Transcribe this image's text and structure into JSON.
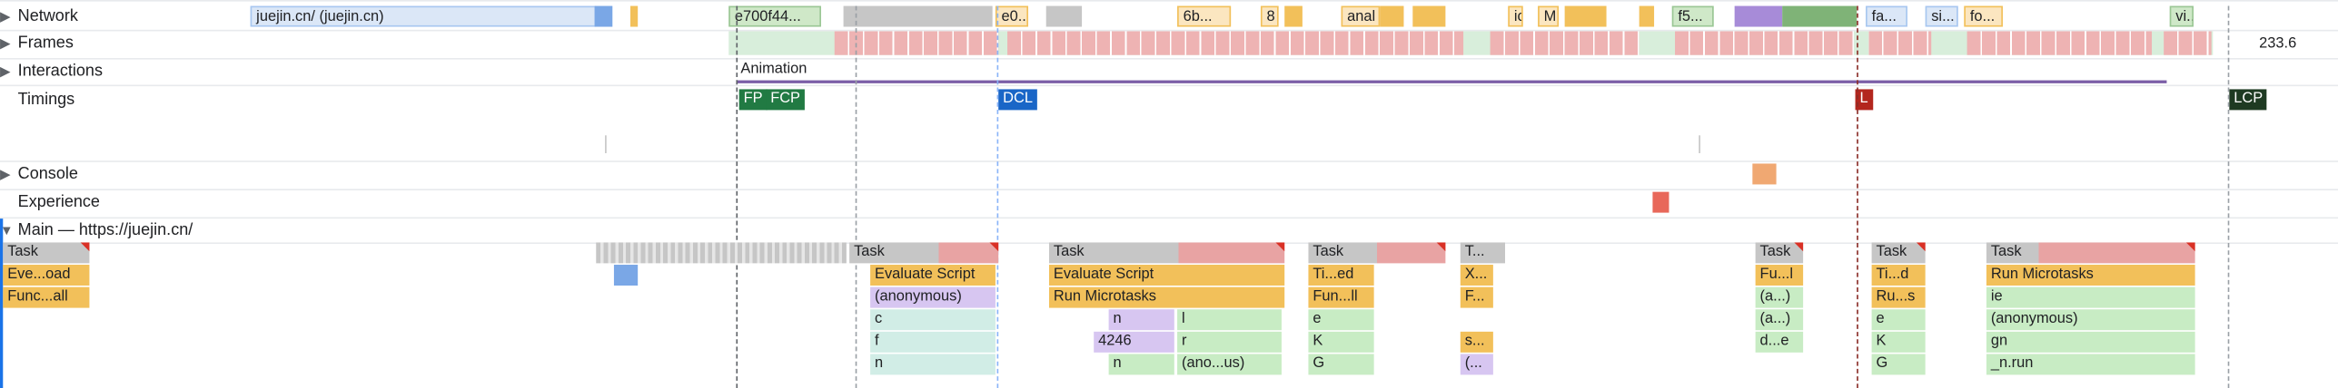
{
  "tracks": {
    "network": "Network",
    "frames": "Frames",
    "interactions": "Interactions",
    "timings": "Timings",
    "console": "Console",
    "experience": "Experience",
    "main": "Main — https://juejin.cn/"
  },
  "frames_value": "233.6",
  "network_requests": [
    "juejin.cn/ (juejin.cn)",
    "e700f44...",
    "e0..",
    "6b...",
    "8",
    "anal",
    "ic",
    "M",
    "f5...",
    "fa...",
    "si...",
    "fo...",
    "vi..."
  ],
  "interaction_label": "Animation",
  "timing_markers": [
    "FP",
    "FCP",
    "DCL",
    "L",
    "LCP"
  ],
  "main_tasks": {
    "task": "Task",
    "evaluate_script": "Evaluate Script",
    "anonymous": "(anonymous)",
    "run_microtasks": "Run Microtasks",
    "eve_load": "Eve...oad",
    "func_all": "Func...all",
    "ti_ed": "Ti...ed",
    "fun_ll": "Fun...ll",
    "t": "T...",
    "x": "X...",
    "f": "F...",
    "s": "s...",
    "paren": "(...",
    "fu_l": "Fu...l",
    "a1": "(a...)",
    "a2": "(a...)",
    "d_e": "d...e",
    "ti_d": "Ti...d",
    "ru_s": "Ru...s",
    "c": "c",
    "f_lower": "f",
    "n": "n",
    "n2": "n",
    "n3": "n",
    "l": "l",
    "r": "r",
    "num": "4246",
    "anon_us": "(ano...us)",
    "e": "e",
    "e2": "e",
    "K": "K",
    "K2": "K",
    "G": "G",
    "G2": "G",
    "ie": "ie",
    "anonymous2": "(anonymous)",
    "gn": "gn",
    "n_run": "_n.run"
  },
  "colors": {
    "task_gray": "#c6c6c6",
    "script_yellow": "#f2c05a",
    "js_green": "#c8ecc4",
    "js_teal": "#d1ede6",
    "js_purple": "#d7c6f1",
    "network_blue": "#a8c7f0",
    "fp_green": "#217a43",
    "dcl_blue": "#1a66c7",
    "l_red": "#b3261e",
    "lcp_dark": "#1e3a22",
    "frame_pink": "#eeb3b3",
    "frame_green": "#d8eedb"
  }
}
